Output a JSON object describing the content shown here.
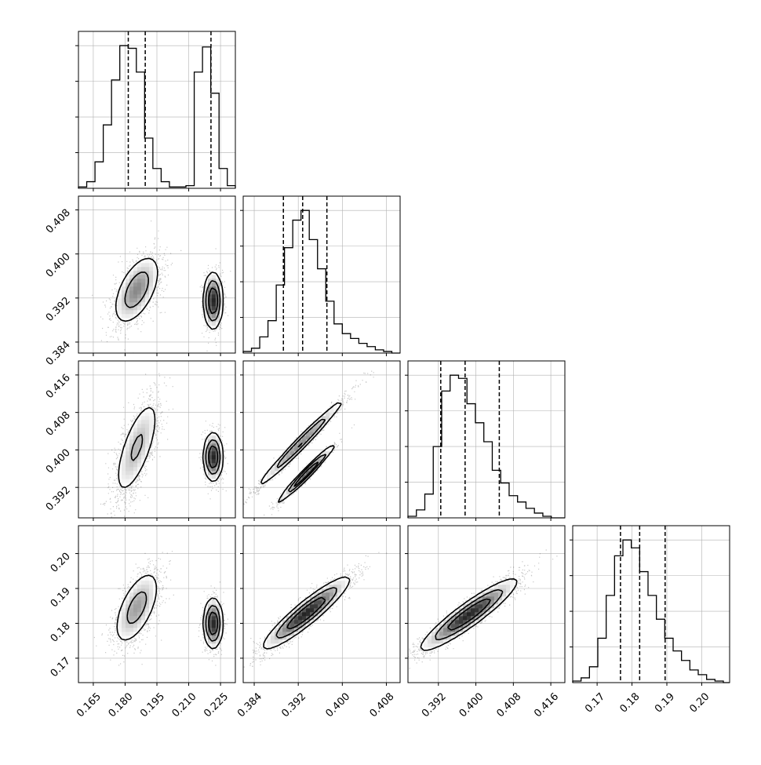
{
  "chart_data": {
    "type": "corner",
    "parameters": [
      {
        "range": [
          0.158,
          0.232
        ],
        "ticks": [
          0.165,
          0.18,
          0.195,
          0.21,
          0.225
        ],
        "tick_labels": [
          "0.165",
          "0.180",
          "0.195",
          "0.210",
          "0.225"
        ],
        "quantiles": [
          0.1815,
          0.1895,
          0.2205
        ],
        "histogram": {
          "bin_edges": [
            0.158,
            0.1619,
            0.1658,
            0.1697,
            0.1736,
            0.1775,
            0.1814,
            0.1853,
            0.1892,
            0.1931,
            0.197,
            0.2009,
            0.2048,
            0.2087,
            0.2126,
            0.2165,
            0.2204,
            0.2243,
            0.2282,
            0.232
          ],
          "counts": [
            1,
            5,
            20,
            48,
            82,
            108,
            106,
            88,
            38,
            15,
            5,
            1,
            1,
            2,
            88,
            107,
            72,
            15,
            2
          ]
        },
        "modes": [
          {
            "x": 0.1855,
            "sx": 0.0055
          },
          {
            "x": 0.2215,
            "sx": 0.0022
          }
        ]
      },
      {
        "range": [
          0.382,
          0.4105
        ],
        "ticks": [
          0.384,
          0.392,
          0.4,
          0.408
        ],
        "tick_labels": [
          "0.384",
          "0.392",
          "0.400",
          "0.408"
        ],
        "quantiles": [
          0.3893,
          0.3928,
          0.3972
        ],
        "histogram": {
          "bin_edges": [
            0.382,
            0.3835,
            0.385,
            0.3865,
            0.388,
            0.3895,
            0.391,
            0.3925,
            0.394,
            0.3955,
            0.397,
            0.3985,
            0.4,
            0.4015,
            0.403,
            0.4045,
            0.406,
            0.4075,
            0.409,
            0.4105
          ],
          "counts": [
            1,
            3,
            10,
            20,
            42,
            65,
            82,
            88,
            70,
            52,
            32,
            18,
            12,
            9,
            6,
            4,
            2,
            1,
            0
          ]
        }
      },
      {
        "range": [
          0.3855,
          0.419
        ],
        "ticks": [
          0.392,
          0.4,
          0.408,
          0.416
        ],
        "tick_labels": [
          "0.392",
          "0.400",
          "0.408",
          "0.416"
        ],
        "quantiles": [
          0.3925,
          0.3977,
          0.405
        ],
        "histogram": {
          "bin_edges": [
            0.3855,
            0.3873,
            0.3891,
            0.3909,
            0.3927,
            0.3945,
            0.3963,
            0.3981,
            0.3999,
            0.4017,
            0.4035,
            0.4053,
            0.4071,
            0.4089,
            0.4107,
            0.4125,
            0.4143,
            0.4161,
            0.4179,
            0.419
          ],
          "counts": [
            1,
            5,
            15,
            45,
            80,
            90,
            88,
            72,
            60,
            48,
            30,
            22,
            14,
            10,
            6,
            3,
            1,
            0,
            0
          ]
        }
      },
      {
        "range": [
          0.163,
          0.208
        ],
        "ticks": [
          0.17,
          0.18,
          0.19,
          0.2
        ],
        "tick_labels": [
          "0.17",
          "0.18",
          "0.19",
          "0.20"
        ],
        "quantiles": [
          0.1767,
          0.1822,
          0.1895
        ],
        "histogram": {
          "bin_edges": [
            0.163,
            0.1654,
            0.1678,
            0.1702,
            0.1726,
            0.175,
            0.1774,
            0.1798,
            0.1822,
            0.1846,
            0.187,
            0.1894,
            0.1918,
            0.1942,
            0.1966,
            0.199,
            0.2014,
            0.2038,
            0.2062,
            0.208
          ],
          "counts": [
            1,
            3,
            10,
            28,
            55,
            80,
            90,
            85,
            70,
            55,
            40,
            28,
            20,
            14,
            8,
            5,
            2,
            1,
            0
          ]
        }
      }
    ],
    "joint": [
      {
        "row": 1,
        "col": 0,
        "components": [
          {
            "w": 0.6,
            "mx": 0.1855,
            "my": 0.3935,
            "sx": 0.0055,
            "sy": 0.0032,
            "rho": 0.55
          },
          {
            "w": 0.4,
            "mx": 0.2215,
            "my": 0.3915,
            "sx": 0.0022,
            "sy": 0.0025,
            "rho": 0.0
          }
        ]
      },
      {
        "row": 2,
        "col": 0,
        "components": [
          {
            "w": 0.6,
            "mx": 0.1855,
            "my": 0.4005,
            "sx": 0.0055,
            "sy": 0.0055,
            "rho": 0.7
          },
          {
            "w": 0.4,
            "mx": 0.2215,
            "my": 0.3985,
            "sx": 0.0022,
            "sy": 0.0025,
            "rho": 0.0
          }
        ]
      },
      {
        "row": 2,
        "col": 1,
        "components": [
          {
            "w": 0.6,
            "mx": 0.3925,
            "my": 0.4015,
            "sx": 0.004,
            "sy": 0.0048,
            "rho": 0.985
          },
          {
            "w": 0.4,
            "mx": 0.3935,
            "my": 0.395,
            "sx": 0.0025,
            "sy": 0.003,
            "rho": 0.98
          }
        ]
      },
      {
        "row": 3,
        "col": 0,
        "components": [
          {
            "w": 0.6,
            "mx": 0.1855,
            "my": 0.1845,
            "sx": 0.0055,
            "sy": 0.0055,
            "rho": 0.6
          },
          {
            "w": 0.4,
            "mx": 0.2215,
            "my": 0.18,
            "sx": 0.0022,
            "sy": 0.0035,
            "rho": 0.0
          }
        ]
      },
      {
        "row": 3,
        "col": 1,
        "components": [
          {
            "w": 1.0,
            "mx": 0.3935,
            "my": 0.183,
            "sx": 0.0038,
            "sy": 0.005,
            "rho": 0.92
          }
        ]
      },
      {
        "row": 3,
        "col": 2,
        "components": [
          {
            "w": 1.0,
            "mx": 0.3985,
            "my": 0.1825,
            "sx": 0.005,
            "sy": 0.005,
            "rho": 0.92
          }
        ]
      }
    ],
    "grid": true
  }
}
